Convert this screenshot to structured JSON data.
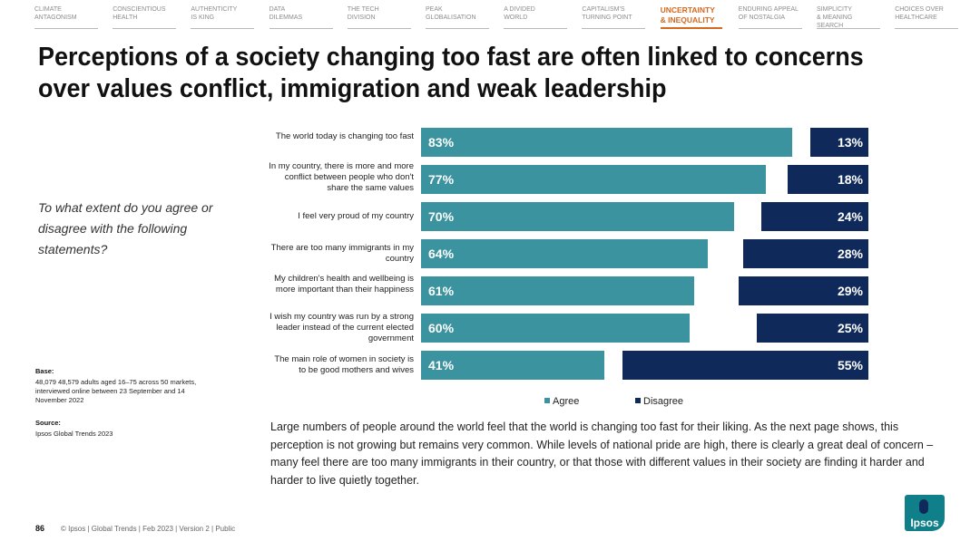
{
  "nav": [
    {
      "label": "Climate\nantagonism"
    },
    {
      "label": "Conscientious\nhealth"
    },
    {
      "label": "Authenticity\nis king"
    },
    {
      "label": "Data\ndilemmas"
    },
    {
      "label": "The tech\ndivision"
    },
    {
      "label": "Peak\nglobalisation"
    },
    {
      "label": "A divided\nworld"
    },
    {
      "label": "Capitalism's\nturning point"
    },
    {
      "label": "Uncertainty\n& inequality",
      "active": true
    },
    {
      "label": "Enduring appeal\nof nostalgia"
    },
    {
      "label": "Simplicity\n& meaning search"
    },
    {
      "label": "Choices over\nhealthcare"
    }
  ],
  "title": "Perceptions of a society changing too fast are often linked to concerns over values conflict, immigration and weak leadership",
  "question": "To what extent do you agree or disagree with the following statements?",
  "base": {
    "label": "Base:",
    "text": "48,079  48,579 adults aged 16–75 across 50 markets, interviewed online between 23 September and 14 November 2022"
  },
  "source": {
    "label": "Source:",
    "text": "Ipsos Global Trends 2023"
  },
  "chart_data": {
    "type": "bar",
    "orientation": "horizontal",
    "layout": "diverging",
    "unit": "%",
    "categories": [
      "The world today is changing too fast",
      "In my country, there is more and more conflict between people who don't share the same values",
      "I feel very proud of my country",
      "There are too many immigrants in my country",
      "My children's health and wellbeing is more important than their happiness",
      "I wish my country was run by a strong leader instead of the current elected government",
      "The main role of women in society is to be good mothers and wives"
    ],
    "series": [
      {
        "name": "Agree",
        "color": "#3a939e",
        "values": [
          83,
          77,
          70,
          64,
          61,
          60,
          41
        ]
      },
      {
        "name": "Disagree",
        "color": "#0f2a5a",
        "values": [
          13,
          18,
          24,
          28,
          29,
          25,
          55
        ]
      }
    ],
    "legend_position": "bottom",
    "grid": false
  },
  "legend": {
    "agree": "Agree",
    "disagree": "Disagree"
  },
  "body_text": "Large numbers of people around the world feel that the world is changing too fast for their liking. As the next page shows, this perception is not growing but remains very common. While levels of national pride are high, there is clearly a great deal of concern – many feel there are too many immigrants in their country, or that those with different values in their society are finding it harder and harder to live quietly together.",
  "footer": {
    "page": "86",
    "text": "© Ipsos | Global Trends | Feb 2023 | Version 2 | Public"
  },
  "logo": {
    "text": "Ipsos",
    "color": "#0f7f8a"
  }
}
